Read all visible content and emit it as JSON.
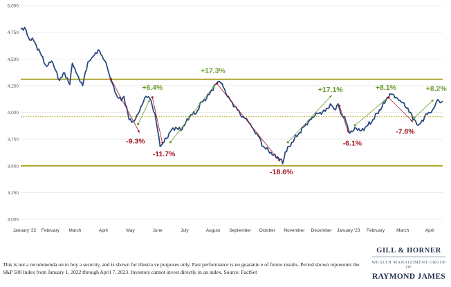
{
  "chart_data": {
    "type": "line",
    "ylim": [
      3000,
      5000
    ],
    "y_ticks": [
      "3,000",
      "3,250",
      "3,500",
      "3,750",
      "4,000",
      "4,250",
      "4,500",
      "4,750",
      "5,000"
    ],
    "y_tick_values": [
      3000,
      3250,
      3500,
      3750,
      4000,
      4250,
      4500,
      4750,
      5000
    ],
    "x_ticks": [
      "January '22",
      "February",
      "March",
      "April",
      "May",
      "June",
      "July",
      "August",
      "September",
      "October",
      "November",
      "December",
      "January '23",
      "February",
      "March",
      "April"
    ],
    "x_tick_index": [
      3,
      23,
      42,
      64,
      85,
      106,
      127,
      149,
      170,
      191,
      212,
      233,
      254,
      275,
      296,
      317
    ],
    "grid": true,
    "colors": {
      "line": "#2a4a80",
      "band": "#a39a12",
      "up": "#6a9b2e",
      "down": "#a31825",
      "midline": "#b7aa1e",
      "grid": "#e6e6e6"
    },
    "reference_lines": {
      "upper": 4310,
      "lower": 3500,
      "middle": 3960
    },
    "anchors": [
      [
        0,
        4780
      ],
      [
        3,
        4795
      ],
      [
        6,
        4700
      ],
      [
        10,
        4670
      ],
      [
        15,
        4560
      ],
      [
        20,
        4430
      ],
      [
        24,
        4480
      ],
      [
        30,
        4300
      ],
      [
        34,
        4370
      ],
      [
        38,
        4260
      ],
      [
        40,
        4460
      ],
      [
        44,
        4350
      ],
      [
        48,
        4250
      ],
      [
        52,
        4470
      ],
      [
        55,
        4510
      ],
      [
        58,
        4560
      ],
      [
        61,
        4580
      ],
      [
        63,
        4530
      ],
      [
        66,
        4470
      ],
      [
        70,
        4290
      ],
      [
        74,
        4170
      ],
      [
        78,
        4110
      ],
      [
        80,
        4150
      ],
      [
        84,
        3930
      ],
      [
        88,
        3920
      ],
      [
        92,
        4010
      ],
      [
        97,
        4150
      ],
      [
        100,
        4130
      ],
      [
        104,
        3990
      ],
      [
        108,
        3680
      ],
      [
        111,
        3720
      ],
      [
        116,
        3820
      ],
      [
        120,
        3860
      ],
      [
        124,
        3830
      ],
      [
        128,
        3910
      ],
      [
        132,
        3980
      ],
      [
        136,
        3990
      ],
      [
        140,
        4100
      ],
      [
        144,
        4130
      ],
      [
        148,
        4210
      ],
      [
        152,
        4270
      ],
      [
        154,
        4290
      ],
      [
        156,
        4270
      ],
      [
        160,
        4150
      ],
      [
        164,
        4090
      ],
      [
        168,
        4020
      ],
      [
        172,
        3960
      ],
      [
        176,
        3920
      ],
      [
        180,
        3850
      ],
      [
        184,
        3780
      ],
      [
        188,
        3680
      ],
      [
        192,
        3640
      ],
      [
        196,
        3600
      ],
      [
        199,
        3585
      ],
      [
        201,
        3560
      ],
      [
        203,
        3520
      ],
      [
        205,
        3630
      ],
      [
        208,
        3680
      ],
      [
        212,
        3750
      ],
      [
        216,
        3810
      ],
      [
        220,
        3870
      ],
      [
        224,
        3930
      ],
      [
        228,
        3970
      ],
      [
        232,
        4000
      ],
      [
        236,
        4010
      ],
      [
        240,
        4080
      ],
      [
        243,
        4030
      ],
      [
        246,
        4080
      ],
      [
        248,
        3990
      ],
      [
        251,
        3960
      ],
      [
        254,
        3830
      ],
      [
        257,
        3820
      ],
      [
        260,
        3850
      ],
      [
        264,
        3830
      ],
      [
        268,
        3870
      ],
      [
        272,
        3910
      ],
      [
        276,
        3990
      ],
      [
        280,
        4050
      ],
      [
        284,
        4140
      ],
      [
        288,
        4170
      ],
      [
        292,
        4130
      ],
      [
        296,
        4090
      ],
      [
        298,
        4050
      ],
      [
        300,
        4040
      ],
      [
        302,
        4000
      ],
      [
        304,
        3930
      ],
      [
        306,
        3920
      ],
      [
        308,
        3880
      ],
      [
        310,
        3900
      ],
      [
        313,
        3960
      ],
      [
        316,
        4000
      ],
      [
        319,
        4020
      ],
      [
        321,
        4060
      ],
      [
        323,
        4120
      ],
      [
        325,
        4090
      ],
      [
        327,
        4105
      ]
    ],
    "arrows": [
      {
        "kind": "down",
        "from": [
          70,
          4310
        ],
        "to": [
          92,
          3810
        ],
        "label": "-9.3%",
        "label_at": [
          89,
          3710
        ]
      },
      {
        "kind": "up",
        "from": [
          91,
          3890
        ],
        "to": [
          100,
          4120
        ],
        "label": "+6.4%",
        "label_at": [
          102,
          4210
        ]
      },
      {
        "kind": "down",
        "from": [
          102,
          4140
        ],
        "to": [
          110,
          3700
        ],
        "label": "-11.7%",
        "label_at": [
          111,
          3590
        ]
      },
      {
        "kind": "up",
        "from": [
          116,
          3720
        ],
        "to": [
          150,
          4250
        ],
        "label": "+17.3%",
        "label_at": [
          149,
          4370
        ]
      },
      {
        "kind": "down",
        "from": [
          152,
          4270
        ],
        "to": [
          201,
          3540
        ],
        "label": "-18.6%",
        "label_at": [
          202,
          3420
        ]
      },
      {
        "kind": "up",
        "from": [
          207,
          3720
        ],
        "to": [
          241,
          4160
        ],
        "label": "+17.1%",
        "label_at": [
          240,
          4190
        ]
      },
      {
        "kind": "down",
        "from": [
          247,
          4060
        ],
        "to": [
          254,
          3810
        ],
        "label": "-6.1%",
        "label_at": [
          257,
          3690
        ]
      },
      {
        "kind": "up",
        "from": [
          259,
          3880
        ],
        "to": [
          283,
          4120
        ],
        "label": "+8.1%",
        "label_at": [
          283,
          4210
        ]
      },
      {
        "kind": "down",
        "from": [
          285,
          4140
        ],
        "to": [
          304,
          3910
        ],
        "label": "-7.8%",
        "label_at": [
          298,
          3800
        ]
      },
      {
        "kind": "up",
        "from": [
          305,
          3950
        ],
        "to": [
          320,
          4120
        ],
        "label": "+8.2%",
        "label_at": [
          322,
          4200
        ]
      }
    ]
  },
  "disclaimer": {
    "line1": "This is not a recommenda  on to buy a security, and is shown for illustra   ve purposes only.  Past performance is no guarante      e of future results. Period shown represents the",
    "line2": "S&P 500 Index from January 1, 2022 through April 7, 2023.  Investors cannot invest directly in an index.  Source: FactSet"
  },
  "brand": {
    "name_top": "GILL & HORNER",
    "subtitle": "WEALTH MANAGEMENT GROUP OF",
    "name_bottom": "RAYMOND JAMES"
  }
}
